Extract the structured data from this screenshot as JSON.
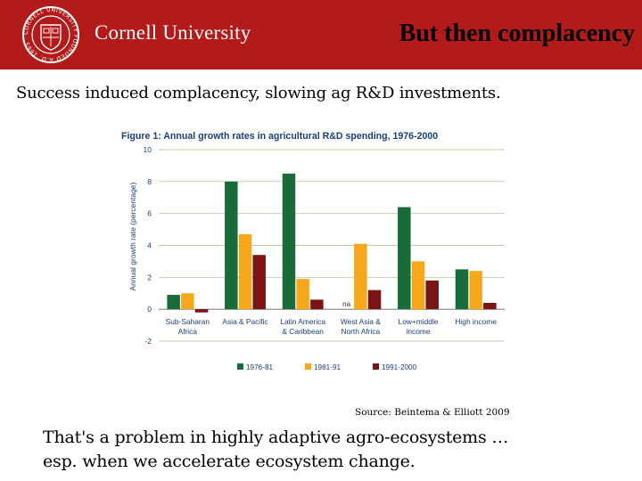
{
  "header": {
    "university_name": "Cornell University",
    "slide_title": "But then complacency",
    "seal_text": "CORNELL UNIVERSITY FOUNDED A.D. 1865",
    "background_color": "#b31b1b"
  },
  "subtitle": "Success induced complacency, slowing ag R&D investments.",
  "source": "Source: Beintema & Elliott 2009",
  "footer": {
    "line1": "That's a problem in highly adaptive agro-ecosystems …",
    "line2": "esp. when we accelerate ecosystem change."
  },
  "chart_data": {
    "type": "bar",
    "title": "Figure 1: Annual growth rates in agricultural R&D spending, 1976-2000",
    "xlabel": "",
    "ylabel": "Annual growth rate (percentage)",
    "ylim": [
      -2,
      10
    ],
    "yticks": [
      -2,
      0,
      2,
      4,
      6,
      8,
      10
    ],
    "grid": true,
    "legend_position": "bottom",
    "categories": [
      [
        "Sub-Saharan",
        "Africa"
      ],
      [
        "Asia & Pacific"
      ],
      [
        "Latin America",
        "& Caribbean"
      ],
      [
        "West Asia &",
        "North Africa"
      ],
      [
        "Low+middle",
        "income"
      ],
      [
        "High income"
      ]
    ],
    "series": [
      {
        "name": "1976-81",
        "color": "#1a6b3a",
        "values": [
          0.9,
          8.0,
          8.5,
          null,
          6.4,
          2.5
        ]
      },
      {
        "name": "1981-91",
        "color": "#f5a81c",
        "values": [
          1.0,
          4.7,
          1.9,
          4.1,
          3.0,
          2.4
        ]
      },
      {
        "name": "1991-2000",
        "color": "#7b1414",
        "values": [
          -0.2,
          3.4,
          0.6,
          1.2,
          1.8,
          0.4
        ]
      }
    ],
    "annotations": [
      {
        "category_index": 3,
        "series_index": 0,
        "text": "na"
      }
    ]
  }
}
